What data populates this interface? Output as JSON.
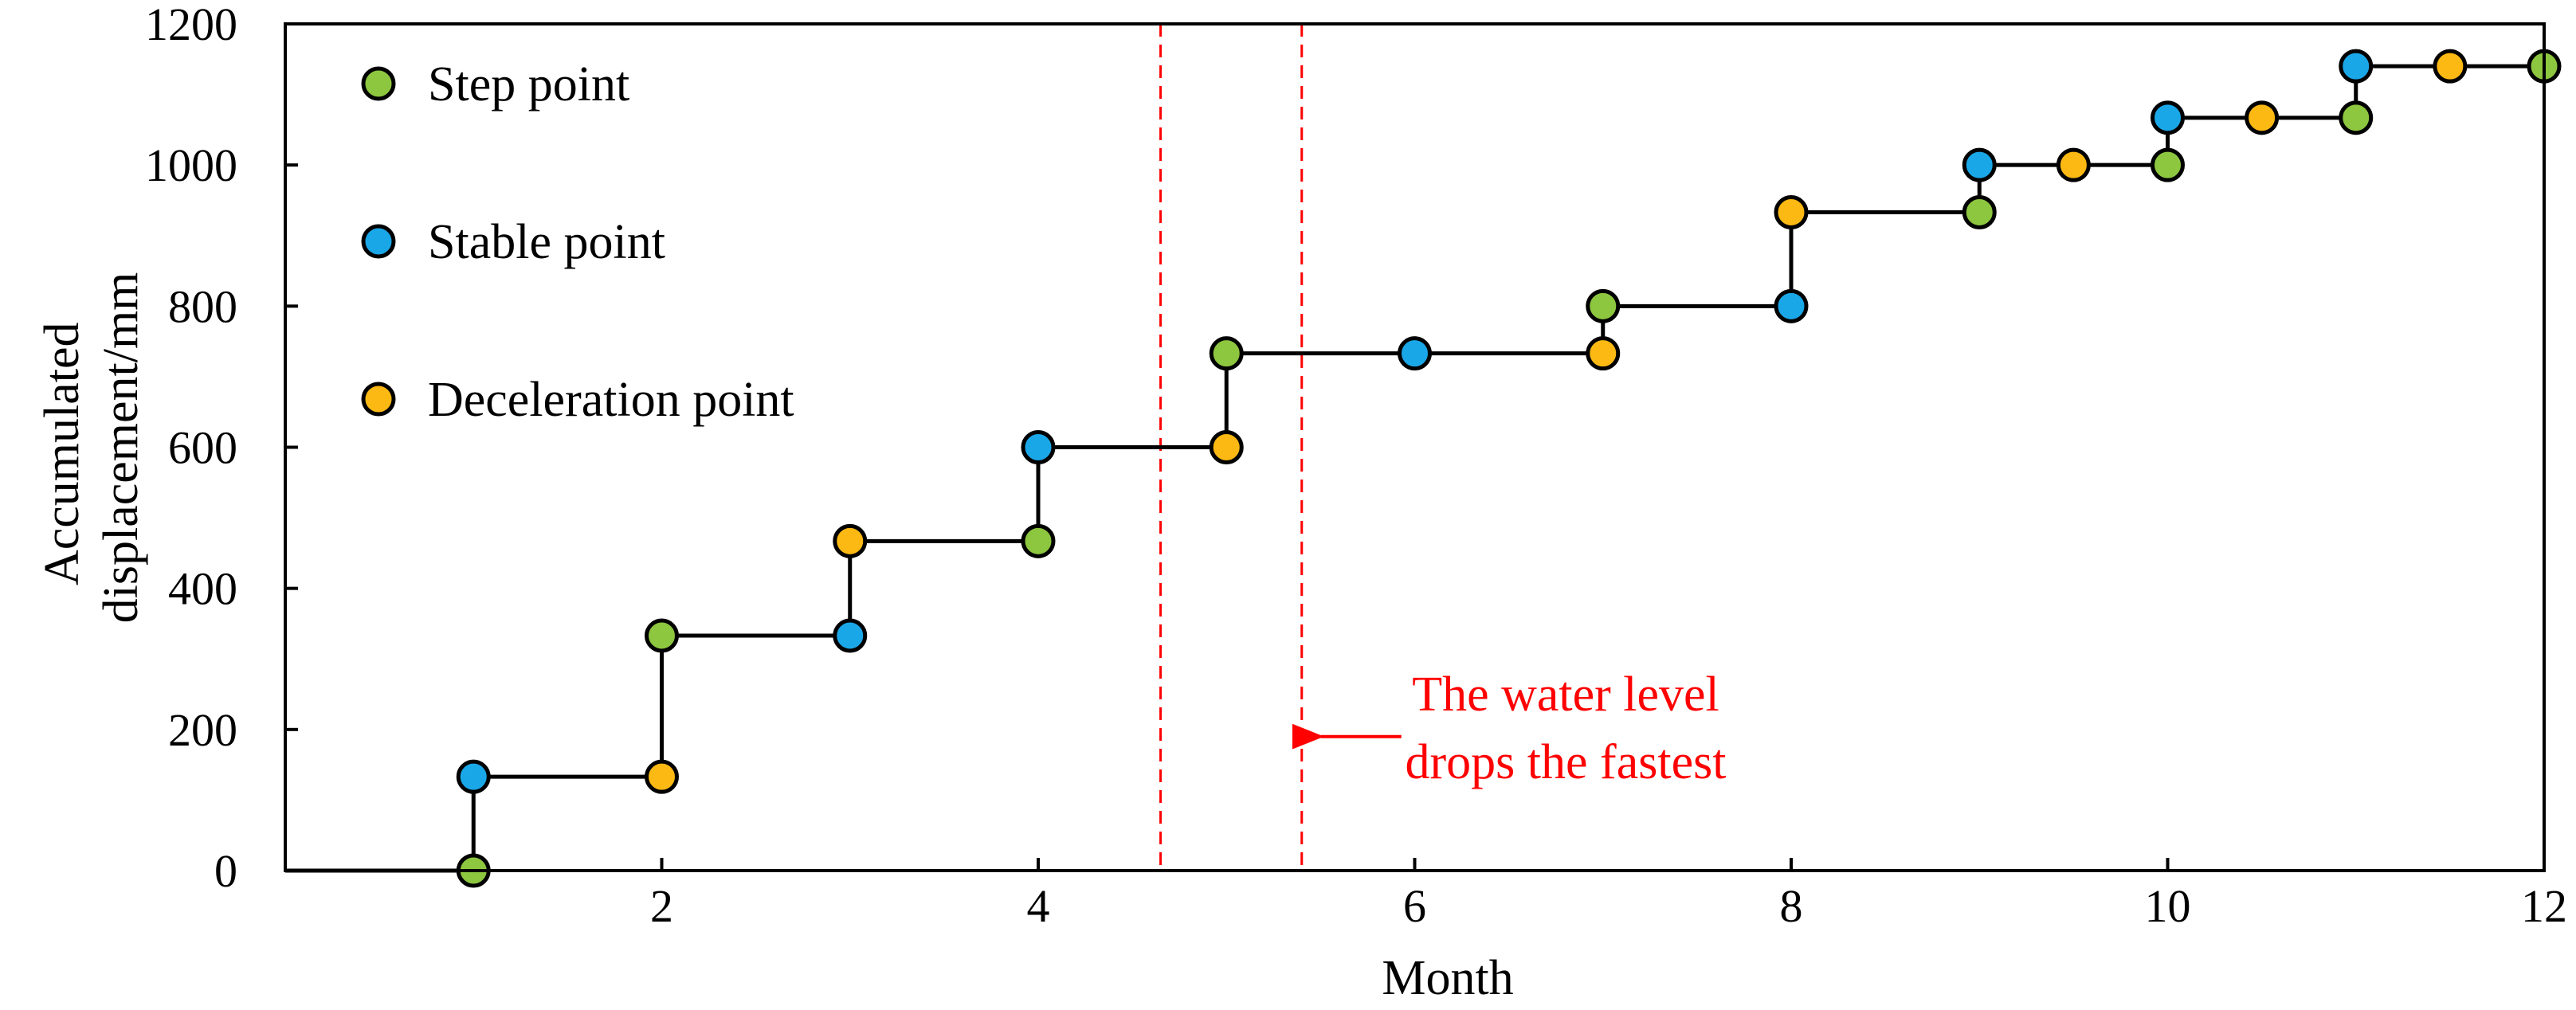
{
  "chart_data": {
    "type": "line",
    "xlabel": "Month",
    "ylabel_lines": [
      "Accumulated",
      "displacement/mm"
    ],
    "xlim": [
      0,
      12
    ],
    "ylim": [
      0,
      1200
    ],
    "xticks": [
      2,
      4,
      6,
      8,
      10,
      12
    ],
    "yticks": [
      0,
      200,
      400,
      600,
      800,
      1000,
      1200
    ],
    "grid": false,
    "step_line": [
      [
        0,
        0
      ],
      [
        1,
        0
      ],
      [
        1,
        133
      ],
      [
        2,
        133
      ],
      [
        2,
        333
      ],
      [
        3,
        333
      ],
      [
        3,
        467
      ],
      [
        4,
        467
      ],
      [
        4,
        600
      ],
      [
        5,
        600
      ],
      [
        5,
        733
      ],
      [
        7,
        733
      ],
      [
        7,
        800
      ],
      [
        8,
        800
      ],
      [
        8,
        933
      ],
      [
        9,
        933
      ],
      [
        9,
        1000
      ],
      [
        10,
        1000
      ],
      [
        10,
        1067
      ],
      [
        11,
        1067
      ],
      [
        11,
        1140
      ],
      [
        12,
        1140
      ]
    ],
    "series": [
      {
        "name": "Step point",
        "color": "#8DC63F",
        "points": [
          [
            1,
            0
          ],
          [
            2,
            333
          ],
          [
            4,
            467
          ],
          [
            5,
            733
          ],
          [
            7,
            800
          ],
          [
            9,
            933
          ],
          [
            10,
            1000
          ],
          [
            11,
            1067
          ],
          [
            12,
            1140
          ]
        ]
      },
      {
        "name": "Stable point",
        "color": "#1AA7E8",
        "points": [
          [
            1,
            133
          ],
          [
            3,
            333
          ],
          [
            4,
            600
          ],
          [
            6,
            733
          ],
          [
            8,
            800
          ],
          [
            9,
            1000
          ],
          [
            10,
            1067
          ],
          [
            11,
            1140
          ]
        ]
      },
      {
        "name": "Deceleration point",
        "color": "#FDB913",
        "points": [
          [
            2,
            133
          ],
          [
            3,
            467
          ],
          [
            5,
            600
          ],
          [
            7,
            733
          ],
          [
            8,
            933
          ],
          [
            9.5,
            1000
          ],
          [
            10.5,
            1067
          ],
          [
            11.5,
            1140
          ]
        ]
      }
    ],
    "legend_position": "top-left",
    "reference_lines": {
      "x": [
        4.65,
        5.4
      ],
      "color": "#FF0000",
      "style": "dashed"
    },
    "annotation": {
      "lines": [
        "The water level",
        "drops the fastest"
      ],
      "color": "#FF0000",
      "arrow_target": [
        5.4,
        190
      ]
    }
  }
}
